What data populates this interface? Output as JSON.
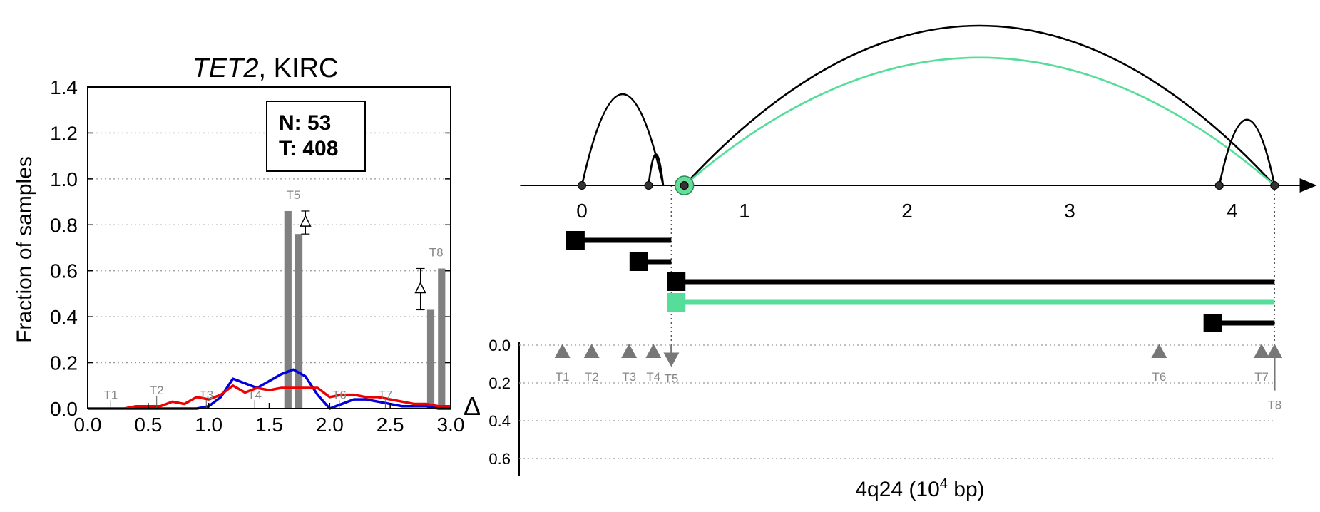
{
  "chart_data": [
    {
      "type": "bar",
      "title_gene": "TET2",
      "title_rest": ", KIRC",
      "ylabel": "Fraction of samples",
      "xlabel": "",
      "xlim": [
        0,
        3.0
      ],
      "ylim": [
        0,
        1.4
      ],
      "grid": "horizontal-dotted",
      "x_ticks": [
        0.0,
        0.5,
        1.0,
        1.5,
        2.0,
        2.5,
        3.0
      ],
      "x_tick_labels": [
        "0.0",
        "0.5",
        "1.0",
        "1.5",
        "2.0",
        "2.5",
        "3.0"
      ],
      "y_ticks": [
        0.0,
        0.2,
        0.4,
        0.6,
        0.8,
        1.0,
        1.2,
        1.4
      ],
      "y_tick_labels": [
        "0.0",
        "0.2",
        "0.4",
        "0.6",
        "0.8",
        "1.0",
        "1.2",
        "1.4"
      ],
      "legend_box": {
        "line1": "N: 53",
        "line2": "T: 408",
        "placement": "top-right"
      },
      "bars": [
        {
          "label": "T5",
          "x": 1.655,
          "value": 0.86,
          "color": "#808080"
        },
        {
          "label": "T5",
          "x": 1.745,
          "value": 0.76,
          "color": "#808080"
        },
        {
          "label": "T8",
          "x": 2.835,
          "value": 0.43,
          "color": "#808080"
        },
        {
          "label": "T8",
          "x": 2.925,
          "value": 0.61,
          "color": "#808080"
        }
      ],
      "bar_width": 0.06,
      "bar_labels": [
        {
          "text": "T1",
          "x": 0.19,
          "y": 0.03
        },
        {
          "text": "T2",
          "x": 0.57,
          "y": 0.05
        },
        {
          "text": "T3",
          "x": 0.98,
          "y": 0.03
        },
        {
          "text": "T4",
          "x": 1.38,
          "y": 0.03
        },
        {
          "text": "T5",
          "x": 1.7,
          "y": 0.9
        },
        {
          "text": "T6",
          "x": 2.08,
          "y": 0.03
        },
        {
          "text": "T7",
          "x": 2.46,
          "y": 0.03
        },
        {
          "text": "T8",
          "x": 2.88,
          "y": 0.65
        }
      ],
      "delta_markers": [
        {
          "x": 1.8,
          "y_low": 0.76,
          "y_high": 0.86
        },
        {
          "x": 2.75,
          "y_low": 0.43,
          "y_high": 0.61
        }
      ],
      "series": [
        {
          "color": "#0000dd",
          "x": [
            0,
            0.1,
            0.2,
            0.3,
            0.4,
            0.5,
            0.6,
            0.7,
            0.8,
            0.9,
            1.0,
            1.1,
            1.2,
            1.3,
            1.4,
            1.5,
            1.6,
            1.7,
            1.8,
            1.9,
            2.0,
            2.1,
            2.2,
            2.3,
            2.4,
            2.5,
            2.6,
            2.7,
            2.8,
            2.9,
            3.0
          ],
          "values": [
            0,
            0,
            0,
            0,
            0,
            0,
            0,
            0,
            0,
            0,
            0.01,
            0.05,
            0.13,
            0.11,
            0.09,
            0.12,
            0.15,
            0.17,
            0.14,
            0.06,
            0,
            0.02,
            0.04,
            0.04,
            0.03,
            0.02,
            0.01,
            0.01,
            0.01,
            0,
            0
          ]
        },
        {
          "color": "#ee0000",
          "x": [
            0,
            0.1,
            0.2,
            0.3,
            0.4,
            0.5,
            0.6,
            0.7,
            0.8,
            0.9,
            1.0,
            1.1,
            1.2,
            1.3,
            1.4,
            1.5,
            1.6,
            1.7,
            1.8,
            1.9,
            2.0,
            2.1,
            2.2,
            2.3,
            2.4,
            2.5,
            2.6,
            2.7,
            2.8,
            2.9,
            3.0
          ],
          "values": [
            0,
            0,
            0,
            0,
            0.01,
            0.01,
            0.01,
            0.03,
            0.02,
            0.05,
            0.04,
            0.06,
            0.1,
            0.07,
            0.09,
            0.08,
            0.09,
            0.09,
            0.09,
            0.09,
            0.05,
            0.06,
            0.06,
            0.05,
            0.05,
            0.04,
            0.03,
            0.02,
            0.02,
            0.01,
            0.01
          ]
        }
      ]
    },
    {
      "type": "diagram",
      "xlabel_prefix": "4q24 (10",
      "xlabel_sup": "4",
      "xlabel_suffix": " bp)",
      "axis_ticks": [
        0,
        1,
        2,
        3,
        4
      ],
      "axis_tick_labels": [
        "0",
        "1",
        "2",
        "3",
        "4"
      ],
      "xlim": [
        -0.38,
        4.52
      ],
      "junction_points": [
        0,
        0.41,
        0.63,
        3.92,
        4.26
      ],
      "highlight_point": 0.63,
      "arcs": [
        {
          "from": 0,
          "to": 0.5,
          "height": 1.0,
          "color": "#000000"
        },
        {
          "from": 0.41,
          "to": 0.5,
          "height": 0.34,
          "color": "#000000"
        },
        {
          "from": 0.63,
          "to": 4.26,
          "height": 1.75,
          "color": "#000000"
        },
        {
          "from": 0.63,
          "to": 4.26,
          "height": 1.4,
          "color": "#55dd99"
        },
        {
          "from": 3.92,
          "to": 4.26,
          "height": 0.72,
          "color": "#000000"
        }
      ],
      "dotted_guides": [
        0.55,
        4.26
      ],
      "transcripts": [
        {
          "start": -0.04,
          "end": 0.55,
          "color": "#000000"
        },
        {
          "start": 0.35,
          "end": 0.55,
          "color": "#000000"
        },
        {
          "start": 0.58,
          "end": 4.26,
          "color": "#000000"
        },
        {
          "start": 0.58,
          "end": 4.26,
          "color": "#55dd99"
        },
        {
          "start": 3.88,
          "end": 4.26,
          "color": "#000000"
        }
      ],
      "delta_axis_label": "Δ",
      "delta_ticks": [
        0.0,
        0.2,
        0.4,
        0.6
      ],
      "delta_tick_labels": [
        "0.0",
        "0.2",
        "0.4",
        "0.6"
      ],
      "delta_markers": [
        {
          "label": "T1",
          "x": -0.12,
          "value": 0.0,
          "direction": "up"
        },
        {
          "label": "T2",
          "x": 0.06,
          "value": 0.0,
          "direction": "up"
        },
        {
          "label": "T3",
          "x": 0.29,
          "value": 0.0,
          "direction": "up"
        },
        {
          "label": "T4",
          "x": 0.44,
          "value": 0.0,
          "direction": "up"
        },
        {
          "label": "T5",
          "x": 0.55,
          "value": 0.1,
          "direction": "down"
        },
        {
          "label": "T6",
          "x": 3.55,
          "value": 0.0,
          "direction": "up"
        },
        {
          "label": "T7",
          "x": 4.18,
          "value": 0.0,
          "direction": "up"
        },
        {
          "label": "T8",
          "x": 4.26,
          "value": 0.18,
          "direction": "up"
        }
      ]
    }
  ]
}
